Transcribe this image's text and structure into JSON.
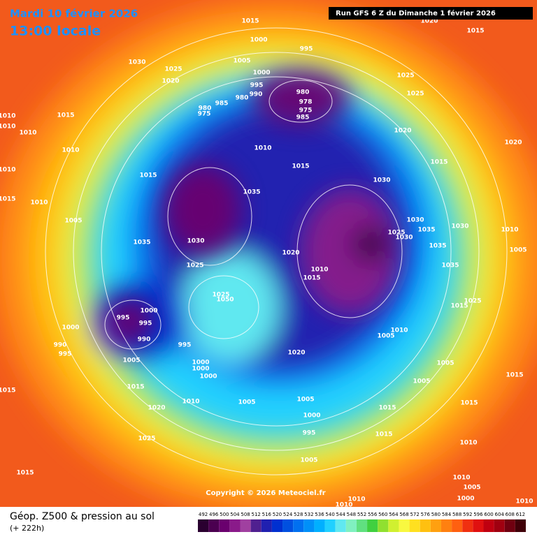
{
  "header": {
    "title": "Mardi 10 février 2026",
    "subtitle": "13:00 locale",
    "run": "Run GFS 6 Z du Dimanche 1 février 2026"
  },
  "copyright": "Copyright © 2026 Meteociel.fr",
  "footer": {
    "title": "Géop. Z500 & pression au sol",
    "lead": "(+ 222h)"
  },
  "scale": {
    "values": [
      492,
      496,
      500,
      504,
      508,
      512,
      516,
      520,
      524,
      528,
      532,
      536,
      540,
      544,
      548,
      552,
      556,
      560,
      564,
      568,
      572,
      576,
      580,
      584,
      588,
      592,
      596,
      600,
      604,
      608,
      612
    ],
    "colors": [
      "#2a0030",
      "#4b0050",
      "#6a006e",
      "#8a1a8a",
      "#a040a0",
      "#502090",
      "#2020b0",
      "#0030d0",
      "#0050e0",
      "#0070f0",
      "#0090f8",
      "#00b0ff",
      "#20d0ff",
      "#60e8f0",
      "#80f0c0",
      "#60e080",
      "#40d040",
      "#90e030",
      "#d0f030",
      "#f8f840",
      "#ffe020",
      "#ffc010",
      "#ffa010",
      "#ff8010",
      "#ff6010",
      "#f03010",
      "#e01010",
      "#c00010",
      "#a00010",
      "#700010",
      "#400008"
    ]
  },
  "isobar_labels": [
    "1015",
    "1020",
    "1015",
    "1000",
    "995",
    "1030",
    "1025",
    "1005",
    "1000",
    "1020",
    "1025",
    "995",
    "980",
    "990",
    "1025",
    "980",
    "985",
    "980",
    "975",
    "978",
    "975",
    "985",
    "1010",
    "1015",
    "1010",
    "1010",
    "1020",
    "1020",
    "1010",
    "1010",
    "1015",
    "1015",
    "1015",
    "1030",
    "1010",
    "1035",
    "1015",
    "1010",
    "1005",
    "1030",
    "1035",
    "1030",
    "1010",
    "1025",
    "1030",
    "1030",
    "1035",
    "1035",
    "1005",
    "1020",
    "1035",
    "1025",
    "1010",
    "1015",
    "1025",
    "1050",
    "1025",
    "1015",
    "1000",
    "995",
    "995",
    "1000",
    "1010",
    "1005",
    "990",
    "995",
    "990",
    "995",
    "1020",
    "1005",
    "1000",
    "1005",
    "1000",
    "1000",
    "1015",
    "1005",
    "1015",
    "1015",
    "1005",
    "1005",
    "1010",
    "1015",
    "1015",
    "1020",
    "1000",
    "995",
    "1015",
    "1025",
    "1010",
    "1015",
    "1005",
    "1010",
    "1005",
    "1000",
    "1010",
    "1010",
    "1010",
    "1005"
  ]
}
